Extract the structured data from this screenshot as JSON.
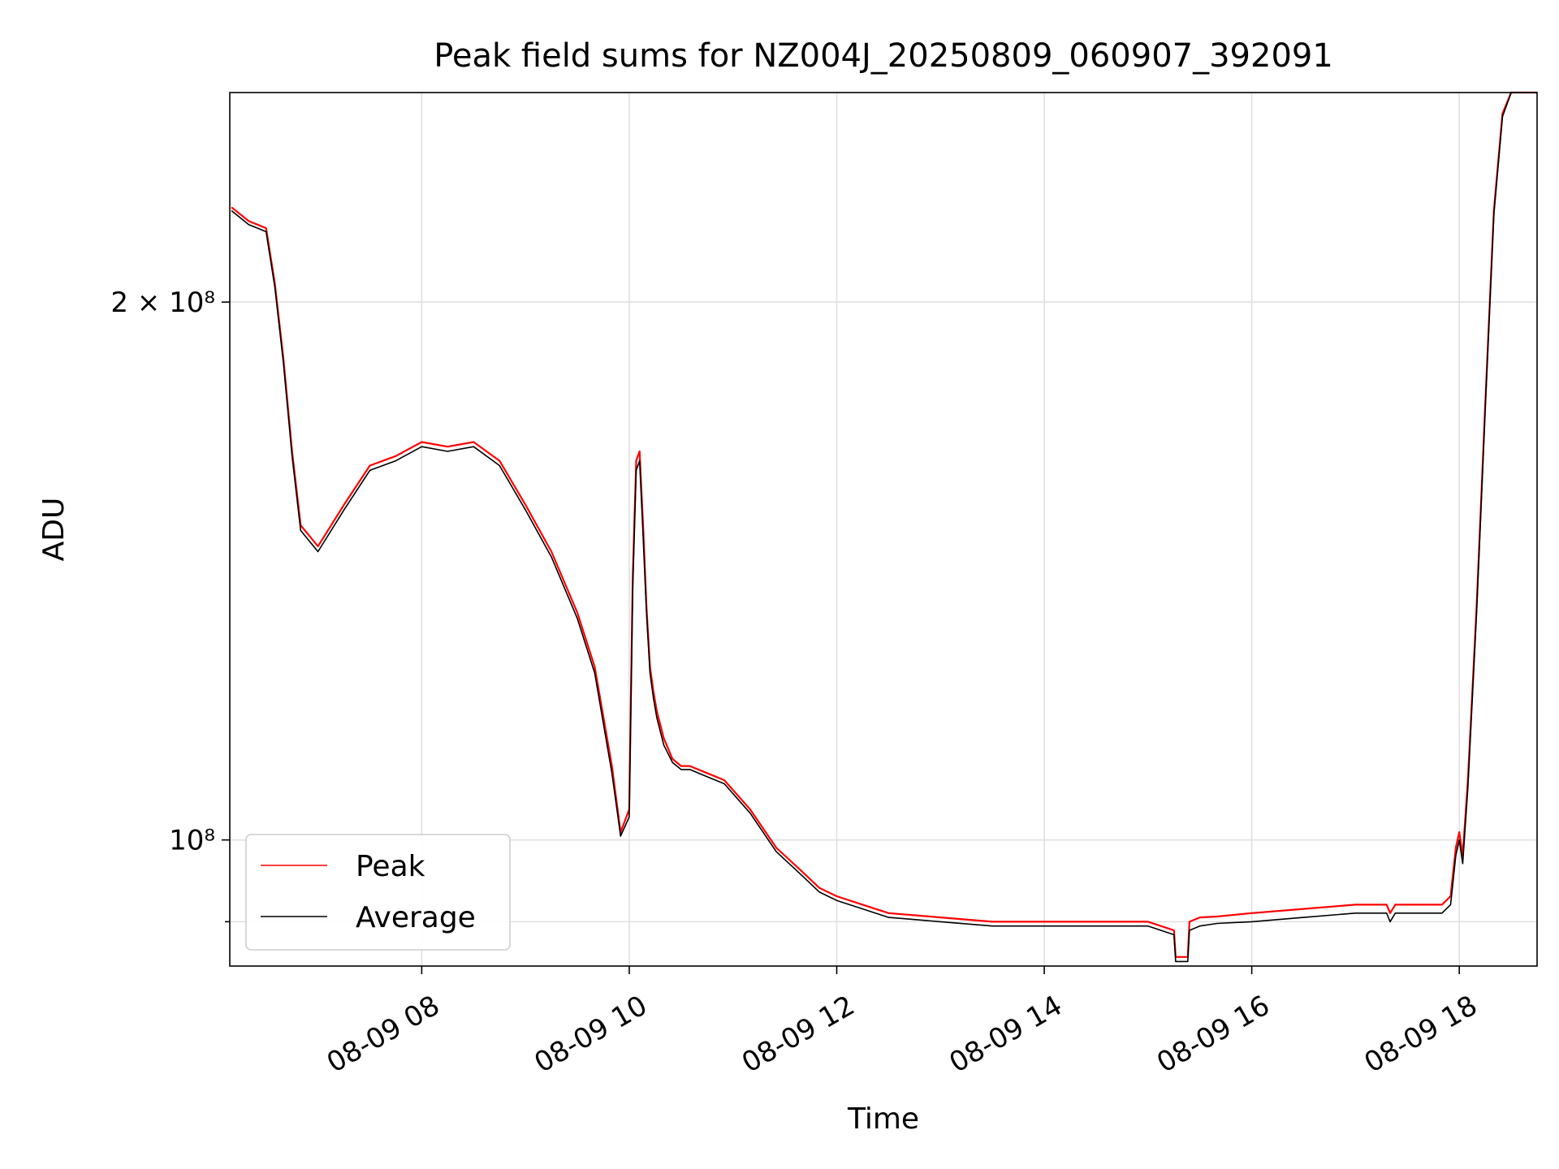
{
  "chart_data": {
    "type": "line",
    "title": "Peak field sums for NZ004J_20250809_060907_392091",
    "xlabel": "Time",
    "ylabel": "ADU",
    "y_scale": "log",
    "grid": true,
    "legend_position": "lower-left",
    "xlim": [
      "2025-08-09T06:09",
      "2025-08-09T18:45"
    ],
    "ylim": [
      85000000,
      262000000
    ],
    "x_ticks": [
      {
        "label": "08-09 08",
        "value": "2025-08-09T08:00"
      },
      {
        "label": "08-09 10",
        "value": "2025-08-09T10:00"
      },
      {
        "label": "08-09 12",
        "value": "2025-08-09T12:00"
      },
      {
        "label": "08-09 14",
        "value": "2025-08-09T14:00"
      },
      {
        "label": "08-09 16",
        "value": "2025-08-09T16:00"
      },
      {
        "label": "08-09 18",
        "value": "2025-08-09T18:00"
      }
    ],
    "y_ticks": [
      {
        "label": "2 × 10⁸",
        "value": 200000000
      },
      {
        "label": "10⁸",
        "value": 100000000
      },
      {
        "label": "",
        "value": 90000000
      }
    ],
    "series": [
      {
        "name": "Peak",
        "color": "#ff0000",
        "x": [
          "2025-08-09T06:10",
          "2025-08-09T06:20",
          "2025-08-09T06:25",
          "2025-08-09T06:30",
          "2025-08-09T06:35",
          "2025-08-09T06:40",
          "2025-08-09T06:45",
          "2025-08-09T06:50",
          "2025-08-09T07:00",
          "2025-08-09T07:15",
          "2025-08-09T07:30",
          "2025-08-09T07:45",
          "2025-08-09T08:00",
          "2025-08-09T08:15",
          "2025-08-09T08:30",
          "2025-08-09T08:45",
          "2025-08-09T09:00",
          "2025-08-09T09:15",
          "2025-08-09T09:30",
          "2025-08-09T09:40",
          "2025-08-09T09:50",
          "2025-08-09T09:55",
          "2025-08-09T10:00",
          "2025-08-09T10:02",
          "2025-08-09T10:04",
          "2025-08-09T10:06",
          "2025-08-09T10:08",
          "2025-08-09T10:10",
          "2025-08-09T10:12",
          "2025-08-09T10:14",
          "2025-08-09T10:16",
          "2025-08-09T10:20",
          "2025-08-09T10:25",
          "2025-08-09T10:30",
          "2025-08-09T10:35",
          "2025-08-09T10:45",
          "2025-08-09T10:55",
          "2025-08-09T11:10",
          "2025-08-09T11:25",
          "2025-08-09T11:30",
          "2025-08-09T11:40",
          "2025-08-09T11:50",
          "2025-08-09T12:00",
          "2025-08-09T12:15",
          "2025-08-09T12:30",
          "2025-08-09T13:00",
          "2025-08-09T13:30",
          "2025-08-09T14:00",
          "2025-08-09T14:30",
          "2025-08-09T15:00",
          "2025-08-09T15:15",
          "2025-08-09T15:16",
          "2025-08-09T15:23",
          "2025-08-09T15:24",
          "2025-08-09T15:30",
          "2025-08-09T15:40",
          "2025-08-09T16:00",
          "2025-08-09T16:30",
          "2025-08-09T17:00",
          "2025-08-09T17:18",
          "2025-08-09T17:20",
          "2025-08-09T17:23",
          "2025-08-09T17:30",
          "2025-08-09T17:50",
          "2025-08-09T17:55",
          "2025-08-09T17:58",
          "2025-08-09T18:00",
          "2025-08-09T18:02",
          "2025-08-09T18:05",
          "2025-08-09T18:10",
          "2025-08-09T18:15",
          "2025-08-09T18:20",
          "2025-08-09T18:25",
          "2025-08-09T18:30",
          "2025-08-09T18:45"
        ],
        "y": [
          226000000,
          222000000,
          221000000,
          220000000,
          205000000,
          186000000,
          165000000,
          150000000,
          146000000,
          154000000,
          162000000,
          164000000,
          167000000,
          166000000,
          167000000,
          163000000,
          154000000,
          145000000,
          134000000,
          125000000,
          110000000,
          101000000,
          104000000,
          140000000,
          163000000,
          165000000,
          150000000,
          135000000,
          125000000,
          121000000,
          118000000,
          114000000,
          111000000,
          110000000,
          110000000,
          109000000,
          108000000,
          104000000,
          99000000,
          98000000,
          96000000,
          94000000,
          93000000,
          92000000,
          91000000,
          90500000,
          90000000,
          90000000,
          90000000,
          90000000,
          89000000,
          86000000,
          86000000,
          90000000,
          90500000,
          90600000,
          91000000,
          91500000,
          92000000,
          92000000,
          91000000,
          92000000,
          92000000,
          92000000,
          93000000,
          99000000,
          101000000,
          98000000,
          108000000,
          135000000,
          175000000,
          225000000,
          255000000,
          262000000,
          262000000
        ]
      },
      {
        "name": "Average",
        "color": "#000000",
        "x": [
          "2025-08-09T06:10",
          "2025-08-09T06:20",
          "2025-08-09T06:25",
          "2025-08-09T06:30",
          "2025-08-09T06:35",
          "2025-08-09T06:40",
          "2025-08-09T06:45",
          "2025-08-09T06:50",
          "2025-08-09T07:00",
          "2025-08-09T07:15",
          "2025-08-09T07:30",
          "2025-08-09T07:45",
          "2025-08-09T08:00",
          "2025-08-09T08:15",
          "2025-08-09T08:30",
          "2025-08-09T08:45",
          "2025-08-09T09:00",
          "2025-08-09T09:15",
          "2025-08-09T09:30",
          "2025-08-09T09:40",
          "2025-08-09T09:50",
          "2025-08-09T09:55",
          "2025-08-09T10:00",
          "2025-08-09T10:02",
          "2025-08-09T10:04",
          "2025-08-09T10:06",
          "2025-08-09T10:08",
          "2025-08-09T10:10",
          "2025-08-09T10:12",
          "2025-08-09T10:14",
          "2025-08-09T10:16",
          "2025-08-09T10:20",
          "2025-08-09T10:25",
          "2025-08-09T10:30",
          "2025-08-09T10:35",
          "2025-08-09T10:45",
          "2025-08-09T10:55",
          "2025-08-09T11:10",
          "2025-08-09T11:25",
          "2025-08-09T11:30",
          "2025-08-09T11:40",
          "2025-08-09T11:50",
          "2025-08-09T12:00",
          "2025-08-09T12:15",
          "2025-08-09T12:30",
          "2025-08-09T13:00",
          "2025-08-09T13:30",
          "2025-08-09T14:00",
          "2025-08-09T14:30",
          "2025-08-09T15:00",
          "2025-08-09T15:15",
          "2025-08-09T15:16",
          "2025-08-09T15:23",
          "2025-08-09T15:24",
          "2025-08-09T15:30",
          "2025-08-09T15:40",
          "2025-08-09T16:00",
          "2025-08-09T16:30",
          "2025-08-09T17:00",
          "2025-08-09T17:18",
          "2025-08-09T17:20",
          "2025-08-09T17:23",
          "2025-08-09T17:30",
          "2025-08-09T17:50",
          "2025-08-09T17:55",
          "2025-08-09T17:58",
          "2025-08-09T18:00",
          "2025-08-09T18:02",
          "2025-08-09T18:05",
          "2025-08-09T18:10",
          "2025-08-09T18:15",
          "2025-08-09T18:20",
          "2025-08-09T18:25",
          "2025-08-09T18:30",
          "2025-08-09T18:45"
        ],
        "y": [
          225000000,
          221000000,
          220000000,
          219000000,
          204000000,
          185000000,
          164000000,
          149000000,
          145000000,
          153000000,
          161000000,
          163000000,
          166000000,
          165000000,
          166000000,
          162000000,
          153000000,
          144000000,
          133000000,
          124000000,
          109000000,
          100500000,
          103000000,
          138000000,
          161000000,
          163000000,
          148000000,
          134000000,
          124000000,
          120000000,
          117000000,
          113000000,
          110500000,
          109500000,
          109500000,
          108500000,
          107500000,
          103500000,
          98500000,
          97500000,
          95500000,
          93500000,
          92500000,
          91500000,
          90500000,
          90000000,
          89500000,
          89500000,
          89500000,
          89500000,
          88500000,
          85500000,
          85500000,
          89000000,
          89500000,
          89800000,
          90000000,
          90500000,
          91000000,
          91000000,
          90000000,
          91000000,
          91000000,
          91000000,
          92000000,
          98000000,
          100000000,
          97000000,
          107000000,
          134000000,
          174000000,
          224000000,
          254000000,
          262000000,
          262000000
        ]
      }
    ]
  }
}
